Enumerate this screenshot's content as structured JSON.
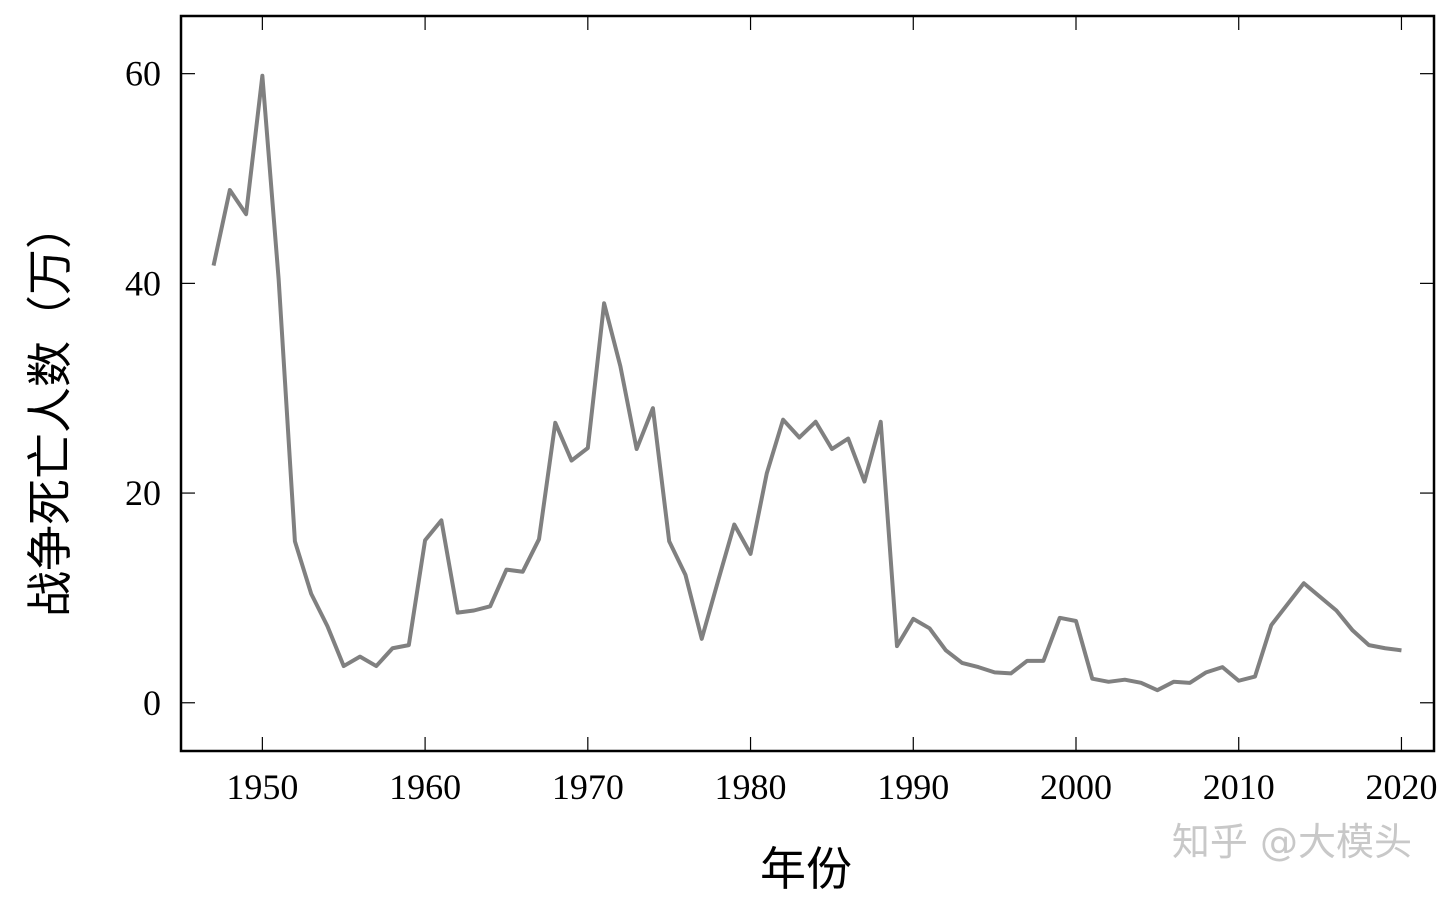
{
  "chart_data": {
    "type": "line",
    "x_label": "年份",
    "y_label": "战争死亡人数（万）",
    "watermark": "知乎 @大模头",
    "x": [
      1947,
      1948,
      1949,
      1950,
      1951,
      1952,
      1953,
      1954,
      1955,
      1956,
      1957,
      1958,
      1959,
      1960,
      1961,
      1962,
      1963,
      1964,
      1965,
      1966,
      1967,
      1968,
      1969,
      1970,
      1971,
      1972,
      1973,
      1974,
      1975,
      1976,
      1977,
      1978,
      1979,
      1980,
      1981,
      1982,
      1983,
      1984,
      1985,
      1986,
      1987,
      1988,
      1989,
      1990,
      1991,
      1992,
      1993,
      1994,
      1995,
      1996,
      1997,
      1998,
      1999,
      2000,
      2001,
      2002,
      2003,
      2004,
      2005,
      2006,
      2007,
      2008,
      2009,
      2010,
      2011,
      2012,
      2013,
      2014,
      2015,
      2016,
      2017,
      2018,
      2019,
      2020
    ],
    "values": [
      41.7,
      48.9,
      46.6,
      59.8,
      40.4,
      15.4,
      10.4,
      7.3,
      3.5,
      4.4,
      3.5,
      5.2,
      5.5,
      15.5,
      17.4,
      8.6,
      8.8,
      9.2,
      12.7,
      12.5,
      15.6,
      26.7,
      23.1,
      24.3,
      38.1,
      32.1,
      24.2,
      28.1,
      15.4,
      12.2,
      6.1,
      11.6,
      17.0,
      14.2,
      21.9,
      27.0,
      25.3,
      26.8,
      24.2,
      25.2,
      21.1,
      26.8,
      5.4,
      8.0,
      7.1,
      5.0,
      3.8,
      3.4,
      2.9,
      2.8,
      4.0,
      4.0,
      8.1,
      7.8,
      2.3,
      2.0,
      2.2,
      1.9,
      1.2,
      2.0,
      1.9,
      2.9,
      3.4,
      2.1,
      2.5,
      7.4,
      9.4,
      11.4,
      10.1,
      8.8,
      6.9,
      5.5,
      5.2,
      5.0
    ],
    "color": "#808080",
    "xlim": [
      1945.0,
      2022.0
    ],
    "xticks": [
      1950,
      1960,
      1970,
      1980,
      1990,
      2000,
      2010,
      2020
    ],
    "ylim": [
      -4.6,
      65.5
    ],
    "yticks": [
      0,
      20,
      40,
      60
    ]
  }
}
